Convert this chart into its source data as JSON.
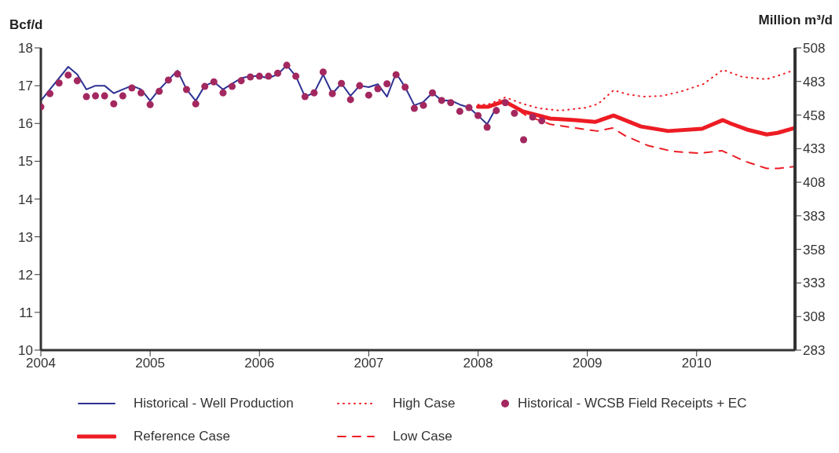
{
  "chart_data": {
    "type": "line",
    "ylabel": "Bcf/d",
    "y2label": "Million m³/d",
    "xlim": [
      2004,
      2010.9
    ],
    "xticks": [
      2004,
      2005,
      2006,
      2007,
      2008,
      2009,
      2010
    ],
    "ylim": [
      10,
      18
    ],
    "yticks": [
      10,
      11,
      12,
      13,
      14,
      15,
      16,
      17,
      18
    ],
    "y2lim": [
      283,
      508
    ],
    "y2ticks": [
      283,
      308,
      333,
      358,
      383,
      408,
      433,
      458,
      483,
      508
    ],
    "grid": false,
    "legend": "bottom",
    "series": [
      {
        "name": "Historical - Well Production",
        "color": "#2e3192",
        "marker": "none",
        "line_style": "solid",
        "x": [
          2004,
          2004.083,
          2004.167,
          2004.25,
          2004.333,
          2004.417,
          2004.5,
          2004.583,
          2004.667,
          2004.75,
          2004.833,
          2004.917,
          2005,
          2005.083,
          2005.167,
          2005.25,
          2005.333,
          2005.417,
          2005.5,
          2005.583,
          2005.667,
          2005.75,
          2005.833,
          2005.917,
          2006,
          2006.083,
          2006.167,
          2006.25,
          2006.333,
          2006.417,
          2006.5,
          2006.583,
          2006.667,
          2006.75,
          2006.833,
          2006.917,
          2007,
          2007.083,
          2007.167,
          2007.25,
          2007.333,
          2007.417,
          2007.5,
          2007.583,
          2007.667,
          2007.75,
          2007.833,
          2007.917,
          2008,
          2008.083,
          2008.167
        ],
        "values": [
          16.6,
          16.9,
          17.2,
          17.5,
          17.3,
          16.9,
          17.0,
          17.0,
          16.8,
          16.9,
          17.0,
          16.9,
          16.6,
          16.9,
          17.15,
          17.4,
          16.9,
          16.6,
          17.0,
          17.1,
          16.9,
          17.05,
          17.2,
          17.25,
          17.25,
          17.2,
          17.3,
          17.54,
          17.25,
          16.71,
          16.81,
          17.29,
          16.79,
          17.06,
          16.73,
          17.0,
          16.96,
          17.04,
          16.71,
          17.33,
          16.96,
          16.48,
          16.57,
          16.81,
          16.61,
          16.61,
          16.5,
          16.42,
          16.21,
          15.98,
          16.42
        ]
      },
      {
        "name": "High Case",
        "color": "#ed1c24",
        "marker": "none",
        "line_style": "dotted",
        "x": [
          2008.0,
          2008.09,
          2008.25,
          2008.41,
          2008.56,
          2008.75,
          2008.99,
          2009.1,
          2009.24,
          2009.37,
          2009.51,
          2009.68,
          2009.85,
          2010.06,
          2010.24,
          2010.42,
          2010.64,
          2010.75,
          2010.9
        ],
        "values": [
          16.5,
          16.5,
          16.69,
          16.52,
          16.4,
          16.34,
          16.42,
          16.52,
          16.88,
          16.77,
          16.71,
          16.73,
          16.84,
          17.04,
          17.42,
          17.23,
          17.17,
          17.27,
          17.42
        ]
      },
      {
        "name": "Historical - WCSB Field Receipts + EC",
        "type": "scatter",
        "color": "#a3285f",
        "marker": "circle",
        "x": [
          2004,
          2004.083,
          2004.167,
          2004.25,
          2004.333,
          2004.417,
          2004.5,
          2004.583,
          2004.667,
          2004.75,
          2004.833,
          2004.917,
          2005,
          2005.083,
          2005.167,
          2005.25,
          2005.333,
          2005.417,
          2005.5,
          2005.583,
          2005.667,
          2005.75,
          2005.833,
          2005.917,
          2006,
          2006.083,
          2006.167,
          2006.25,
          2006.333,
          2006.417,
          2006.5,
          2006.583,
          2006.667,
          2006.75,
          2006.833,
          2006.917,
          2007,
          2007.083,
          2007.167,
          2007.25,
          2007.333,
          2007.417,
          2007.5,
          2007.583,
          2007.667,
          2007.75,
          2007.833,
          2007.917,
          2008,
          2008.083,
          2008.167,
          2008.25,
          2008.333,
          2008.417,
          2008.5,
          2008.583
        ],
        "values": [
          16.44,
          16.79,
          17.07,
          17.28,
          17.13,
          16.71,
          16.73,
          16.73,
          16.52,
          16.73,
          16.94,
          16.81,
          16.5,
          16.85,
          17.15,
          17.31,
          16.9,
          16.52,
          16.98,
          17.1,
          16.81,
          16.98,
          17.13,
          17.23,
          17.25,
          17.25,
          17.33,
          17.54,
          17.25,
          16.71,
          16.81,
          17.36,
          16.79,
          17.06,
          16.63,
          17.0,
          16.75,
          16.92,
          17.05,
          17.29,
          16.96,
          16.4,
          16.48,
          16.81,
          16.61,
          16.55,
          16.32,
          16.42,
          16.21,
          15.9,
          16.34,
          16.55,
          16.27,
          15.57,
          16.17,
          16.07
        ]
      },
      {
        "name": "Reference Case",
        "color": "#ed1c24",
        "marker": "none",
        "line_style": "solid",
        "x": [
          2008.0,
          2008.09,
          2008.24,
          2008.41,
          2008.66,
          2008.89,
          2009.07,
          2009.24,
          2009.49,
          2009.74,
          2010.05,
          2010.24,
          2010.31,
          2010.46,
          2010.64,
          2010.74,
          2010.9
        ],
        "values": [
          16.44,
          16.44,
          16.59,
          16.32,
          16.13,
          16.09,
          16.04,
          16.21,
          15.92,
          15.8,
          15.86,
          16.09,
          16.0,
          15.84,
          15.71,
          15.75,
          15.88
        ]
      },
      {
        "name": "Low Case",
        "color": "#ed1c24",
        "marker": "none",
        "line_style": "dashed",
        "x": [
          2008.0,
          2008.09,
          2008.25,
          2008.44,
          2008.66,
          2008.89,
          2009.09,
          2009.23,
          2009.35,
          2009.55,
          2009.78,
          2010.03,
          2010.23,
          2010.44,
          2010.64,
          2010.75,
          2010.9
        ],
        "values": [
          16.44,
          16.46,
          16.59,
          16.21,
          15.98,
          15.88,
          15.8,
          15.88,
          15.67,
          15.42,
          15.26,
          15.21,
          15.28,
          15.0,
          14.81,
          14.81,
          14.86
        ]
      }
    ]
  }
}
